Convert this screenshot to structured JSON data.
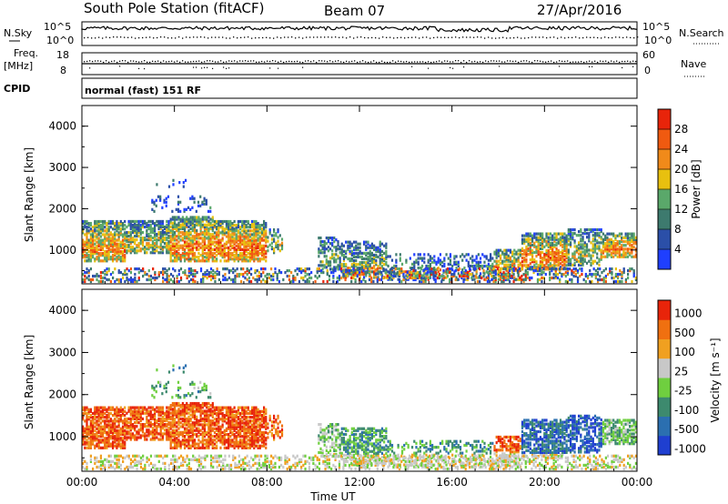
{
  "header": {
    "station": "South Pole Station (fitACF)",
    "beam": "Beam 07",
    "date": "27/Apr/2016"
  },
  "noise_panel": {
    "left_label": "N.Sky",
    "right_label": "N.Search",
    "left_ticks": [
      "10^5",
      "10^0"
    ],
    "right_ticks": [
      "10^5",
      "10^0"
    ]
  },
  "freq_panel": {
    "left_label_1": "Freq.",
    "left_label_2": "[MHz]",
    "right_label": "Nave",
    "left_ticks": [
      "18",
      "8"
    ],
    "right_ticks": [
      "60",
      "0"
    ]
  },
  "cpid": {
    "label": "CPID",
    "value": "normal (fast) 151 RF"
  },
  "chart_data": [
    {
      "type": "heatmap",
      "title": "",
      "xlabel": "",
      "ylabel": "Slant Range [km]",
      "x_ticks": [
        "00:00",
        "04:00",
        "08:00",
        "12:00",
        "16:00",
        "20:00",
        "00:00"
      ],
      "y_ticks": [
        "1000",
        "2000",
        "3000",
        "4000"
      ],
      "ylim": [
        180,
        4500
      ],
      "colorbar": {
        "label": "Power [dB]",
        "ticks": [
          "4",
          "8",
          "12",
          "16",
          "20",
          "24",
          "28"
        ],
        "range": [
          0,
          32
        ],
        "colors": [
          "#1f3fff",
          "#2b4fa8",
          "#3d7a6e",
          "#5aa86a",
          "#e8c00f",
          "#f08a1a",
          "#f05a10",
          "#e8240a"
        ]
      }
    },
    {
      "type": "heatmap",
      "title": "",
      "xlabel": "Time UT",
      "ylabel": "Slant Range [km]",
      "x_ticks": [
        "00:00",
        "04:00",
        "08:00",
        "12:00",
        "16:00",
        "20:00",
        "00:00"
      ],
      "y_ticks": [
        "1000",
        "2000",
        "3000",
        "4000"
      ],
      "ylim": [
        180,
        4500
      ],
      "colorbar": {
        "label": "Velocity [m s⁻¹]",
        "ticks": [
          "1000",
          "500",
          "100",
          "25",
          "-25",
          "-100",
          "-500",
          "-1000"
        ],
        "colors": [
          "#1f3fd0",
          "#2b6fb0",
          "#3d8a6e",
          "#6fcf3f",
          "#c8c8c8",
          "#f0a020",
          "#f07010",
          "#e8240a"
        ]
      }
    }
  ]
}
